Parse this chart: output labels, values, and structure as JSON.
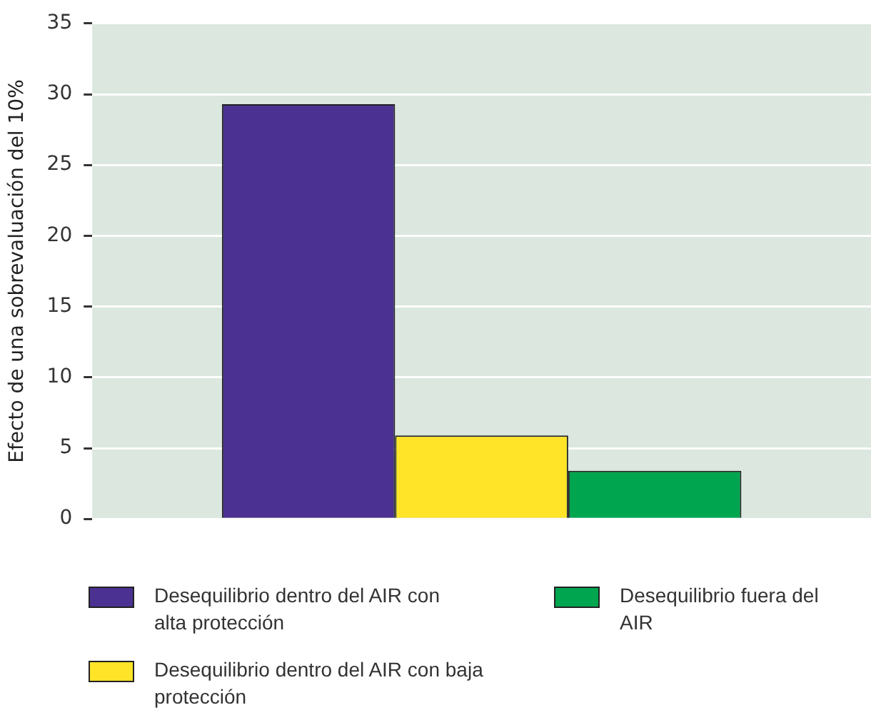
{
  "chart_data": {
    "type": "bar",
    "ylabel": "Efecto de una sobrevaluación del 10%",
    "categories": [
      null
    ],
    "series": [
      {
        "name": "Desequilibrio dentro del AIR con alta protección",
        "color": "#4b3191",
        "values": [
          29.3
        ]
      },
      {
        "name": "Desequilibrio dentro del AIR con baja protección",
        "color": "#ffe428",
        "values": [
          5.9
        ]
      },
      {
        "name": "Desequilibrio fuera del AIR",
        "color": "#00a550",
        "values": [
          3.4
        ]
      }
    ],
    "ylim": [
      0,
      35
    ],
    "yticks": [
      0,
      5,
      10,
      15,
      20,
      25,
      30,
      35
    ],
    "grid": "y",
    "legend": "bottom"
  }
}
